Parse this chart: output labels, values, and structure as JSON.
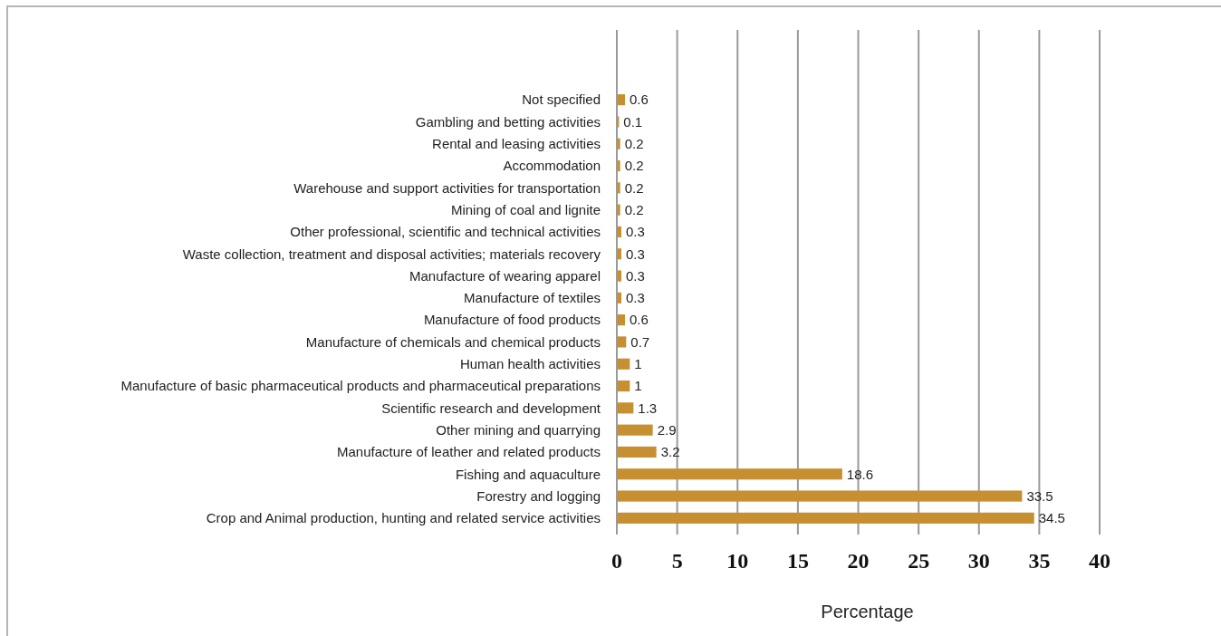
{
  "chart_data": {
    "type": "bar",
    "orientation": "horizontal",
    "categories": [
      "Not specified",
      "Gambling and betting activities",
      "Rental and leasing activities",
      "Accommodation",
      "Warehouse and support activities for transportation",
      "Mining of coal and lignite",
      "Other professional, scientific and technical activities",
      "Waste collection, treatment and disposal activities; materials recovery",
      "Manufacture of wearing apparel",
      "Manufacture of textiles",
      "Manufacture of food products",
      "Manufacture of chemicals and chemical products",
      "Human health activities",
      "Manufacture of basic pharmaceutical products and pharmaceutical preparations",
      "Scientific research and development",
      "Other mining and quarrying",
      "Manufacture of leather and related products",
      "Fishing and aquaculture",
      "Forestry and logging",
      "Crop and Animal production, hunting and related service activities"
    ],
    "values": [
      0.6,
      0.1,
      0.2,
      0.2,
      0.2,
      0.2,
      0.3,
      0.3,
      0.3,
      0.3,
      0.6,
      0.7,
      1,
      1,
      1.3,
      2.9,
      3.2,
      18.6,
      33.5,
      34.5
    ],
    "color": "#c68f32",
    "xlim": [
      0,
      40
    ],
    "xticks": [
      0,
      5,
      10,
      15,
      20,
      25,
      30,
      35,
      40
    ],
    "xlabel": "Percentage",
    "grid": "x",
    "data_labels": true
  }
}
